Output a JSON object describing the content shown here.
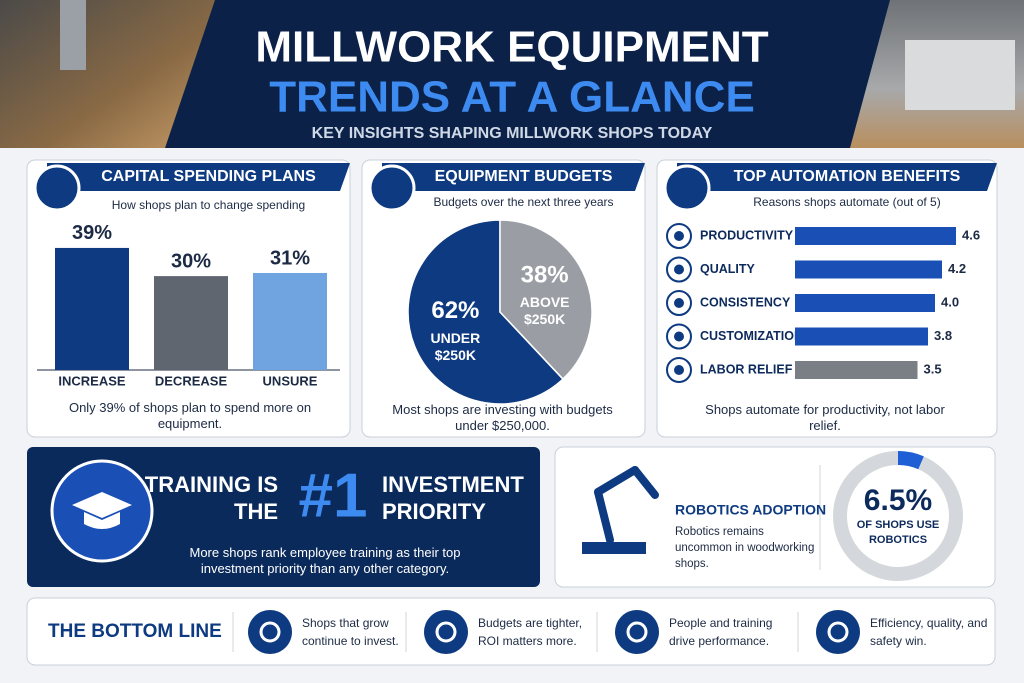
{
  "header": {
    "title_line1": "MILLWORK EQUIPMENT",
    "title_line2": "TRENDS AT A GLANCE",
    "subtitle": "KEY INSIGHTS SHAPING MILLWORK SHOPS TODAY"
  },
  "chart_data": [
    {
      "type": "bar",
      "title": "CAPITAL SPENDING PLANS",
      "subtitle": "How shops plan to change spending",
      "categories": [
        "INCREASE",
        "DECREASE",
        "UNSURE"
      ],
      "values": [
        39,
        30,
        31
      ],
      "value_labels": [
        "39%",
        "30%",
        "31%"
      ],
      "colors": [
        "#0d3a80",
        "#5f6670",
        "#6fa4e0"
      ],
      "caption": "Only 39% of shops plan to spend more on equipment."
    },
    {
      "type": "pie",
      "title": "EQUIPMENT BUDGETS",
      "subtitle": "Budgets over the next three years",
      "categories": [
        "UNDER $250K",
        "ABOVE $250K"
      ],
      "values": [
        62,
        38
      ],
      "value_labels": [
        "62%",
        "38%"
      ],
      "colors": [
        "#0d3a80",
        "#9a9ea4"
      ],
      "caption": "Most shops are investing with budgets under $250,000."
    },
    {
      "type": "hbar",
      "title": "TOP AUTOMATION BENEFITS",
      "subtitle": "Reasons shops automate (out of 5)",
      "categories": [
        "PRODUCTIVITY",
        "QUALITY",
        "CONSISTENCY",
        "CUSTOMIZATION",
        "LABOR RELIEF"
      ],
      "values": [
        4.6,
        4.2,
        4.0,
        3.8,
        3.5
      ],
      "value_labels": [
        "4.6",
        "4.2",
        "4.0",
        "3.8",
        "3.5"
      ],
      "colors": [
        "#1a4fb5",
        "#1a4fb5",
        "#1a4fb5",
        "#1a4fb5",
        "#7a7f86"
      ],
      "caption": "Shops automate for productivity, not labor relief."
    },
    {
      "type": "gauge",
      "title": "ROBOTICS ADOPTION",
      "subtitle": "Robotics remains uncommon in woodworking shops.",
      "value": 6.5,
      "value_label": "6.5%",
      "label": "OF SHOPS USE ROBOTICS",
      "ylim": [
        0,
        100
      ],
      "color": "#1f5fd6"
    }
  ],
  "training": {
    "line1a": "TRAINING IS",
    "line1b": "THE",
    "number": "#1",
    "line2a": "INVESTMENT",
    "line2b": "PRIORITY",
    "text": "More shops rank employee training as their top investment priority than any other category."
  },
  "bottom_line": {
    "title": "THE BOTTOM LINE",
    "items": [
      "Shops that grow continue to invest.",
      "Budgets are tighter, ROI matters more.",
      "People and training drive performance.",
      "Efficiency, quality, and safety win."
    ]
  }
}
